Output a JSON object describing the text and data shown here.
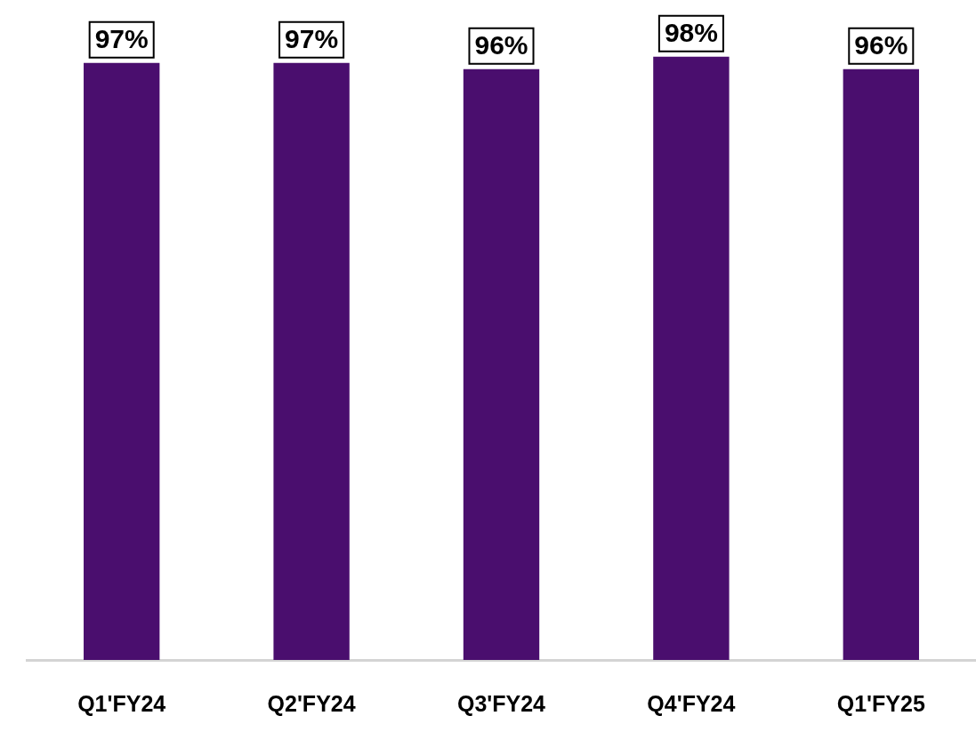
{
  "chart_data": {
    "type": "bar",
    "categories": [
      "Q1'FY24",
      "Q2'FY24",
      "Q3'FY24",
      "Q4'FY24",
      "Q1'FY25"
    ],
    "values": [
      97,
      97,
      96,
      98,
      96
    ],
    "value_labels": [
      "97%",
      "97%",
      "96%",
      "98%",
      "96%"
    ],
    "color": "#4a0e6e",
    "grid": false,
    "legend": false
  }
}
